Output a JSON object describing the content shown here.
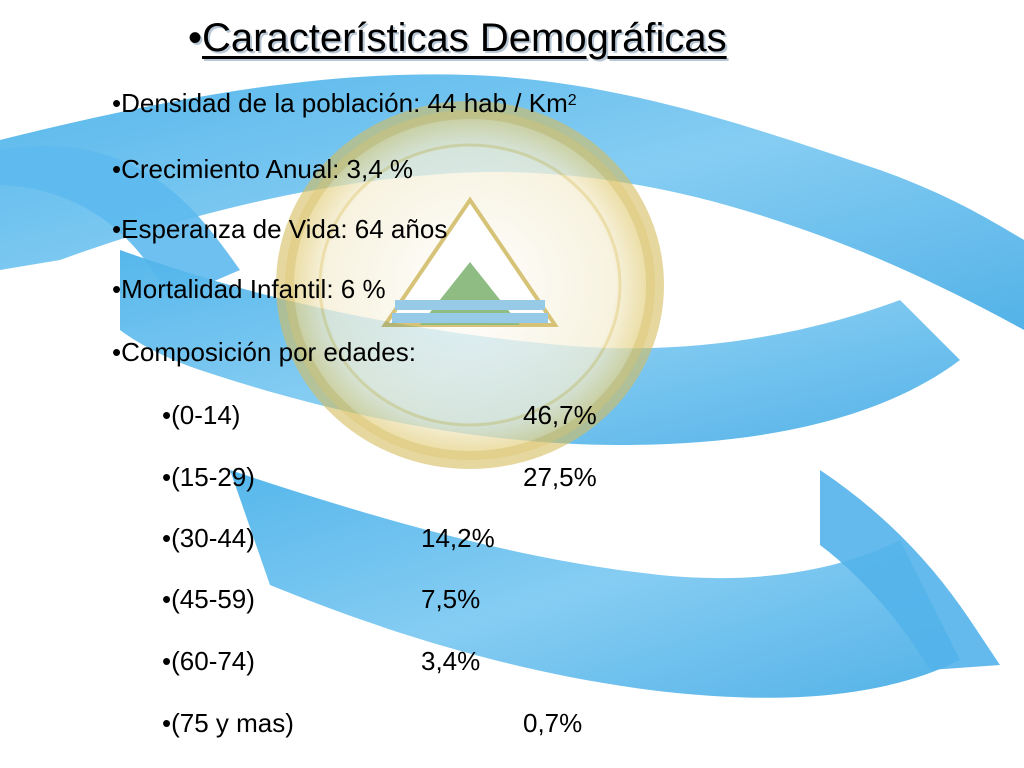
{
  "title": "Características Demográficas",
  "bullet": "•",
  "items": [
    {
      "label": "Densidad de la población: 44 hab / Km",
      "sup": "2"
    },
    {
      "label": "Crecimiento Anual: 3,4 %"
    },
    {
      "label": "Esperanza de Vida: 64 años"
    },
    {
      "label": "Mortalidad Infantil: 6 %"
    },
    {
      "label": "Composición por edades:"
    }
  ],
  "age_groups": [
    {
      "range": "(0-14)",
      "value": "46,7%"
    },
    {
      "range": "(15-29)",
      "value": "27,5%"
    },
    {
      "range": "(30-44)",
      "value": "14,2%"
    },
    {
      "range": "(45-59)",
      "value": "7,5%"
    },
    {
      "range": "(60-74)",
      "value": "3,4%"
    },
    {
      "range": "(75 y mas)",
      "value": "0,7%"
    }
  ],
  "colors": {
    "flag_blue": "#5bb8ec",
    "seal_gold": "#e6cf7a",
    "seal_rim": "#d8c067",
    "triangle_green": "#6aa65a",
    "triangle_blue": "#74b9e0",
    "text": "#000000"
  }
}
